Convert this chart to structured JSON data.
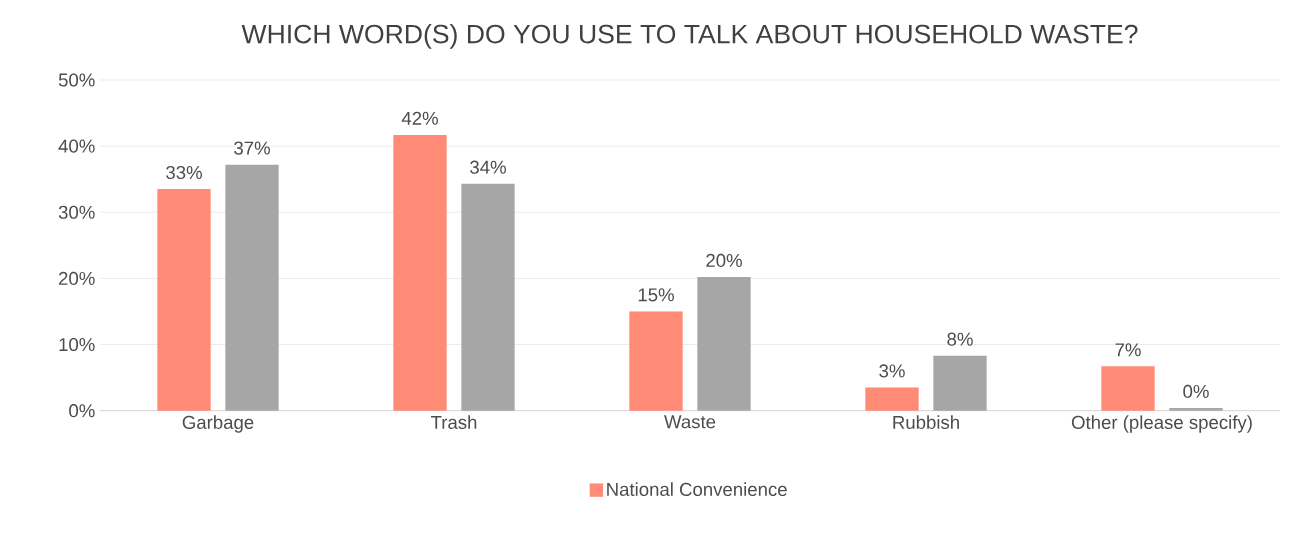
{
  "chart_data": {
    "type": "bar",
    "title": "WHICH WORD(S) DO YOU USE TO TALK ABOUT HOUSEHOLD WASTE?",
    "categories": [
      "Garbage",
      "Trash",
      "Waste",
      "Rubbish",
      "Other (please specify)"
    ],
    "series": [
      {
        "name": "National Convenience",
        "color": "#ff8a75",
        "values": [
          33.5,
          41.7,
          15.0,
          3.5,
          6.7
        ],
        "value_labels": [
          "33%",
          "42%",
          "15%",
          "3%",
          "7%"
        ]
      },
      {
        "color": "#a6a6a6",
        "values": [
          37.2,
          34.3,
          20.2,
          8.3,
          0.4
        ],
        "value_labels": [
          "37%",
          "34%",
          "20%",
          "8%",
          "0%"
        ]
      }
    ],
    "ylim": [
      0,
      50
    ],
    "yticks": [
      {
        "value": 0,
        "label": "0%"
      },
      {
        "value": 10,
        "label": "10%"
      },
      {
        "value": 20,
        "label": "20%"
      },
      {
        "value": 30,
        "label": "30%"
      },
      {
        "value": 40,
        "label": "40%"
      },
      {
        "value": 50,
        "label": "50%"
      }
    ],
    "grid": "y",
    "legend": "bottom"
  }
}
